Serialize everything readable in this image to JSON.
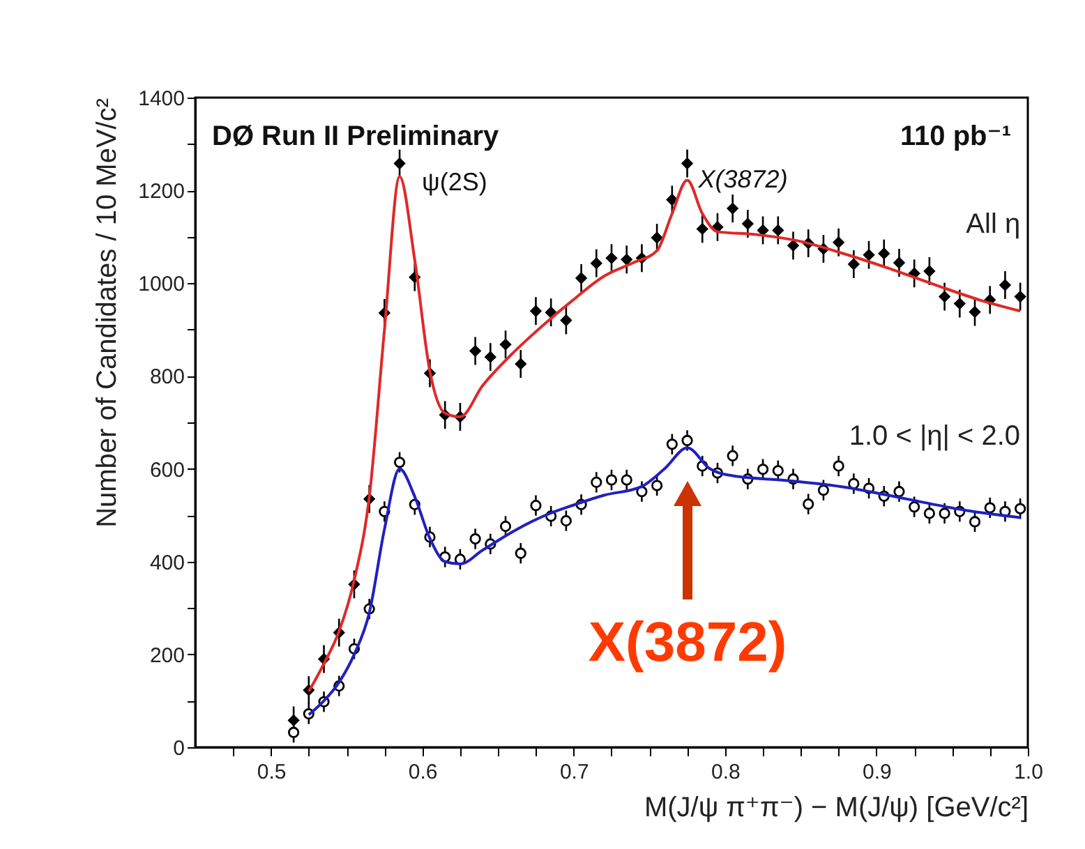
{
  "chart_data": {
    "type": "scatter",
    "xlabel": "M(J/ψ π⁺π⁻) − M(J/ψ) [GeV/c²]",
    "ylabel": "Number of Candidates / 10 MeV/c²",
    "annotations": [
      "DØ Run II Preliminary",
      "110 pb⁻¹",
      {
        "text": "ψ(2S)",
        "x": 0.585,
        "y": 1258
      },
      {
        "text": "X(3872)",
        "x": 0.775,
        "y": 1258
      },
      "X(3872)"
    ],
    "xlim": [
      0.45,
      1.0
    ],
    "xticks": [
      {
        "value": 0.475,
        "label": null
      },
      0.5,
      {
        "value": 0.525,
        "label": null
      },
      {
        "value": 0.55,
        "label": null
      },
      {
        "value": 0.575,
        "label": null
      },
      0.6,
      {
        "value": 0.625,
        "label": null
      },
      {
        "value": 0.65,
        "label": null
      },
      {
        "value": 0.675,
        "label": null
      },
      0.7,
      {
        "value": 0.725,
        "label": null
      },
      {
        "value": 0.75,
        "label": null
      },
      {
        "value": 0.775,
        "label": null
      },
      0.8,
      {
        "value": 0.825,
        "label": null
      },
      {
        "value": 0.85,
        "label": null
      },
      {
        "value": 0.875,
        "label": null
      },
      0.9,
      {
        "value": 0.925,
        "label": null
      },
      {
        "value": 0.95,
        "label": null
      },
      {
        "value": 0.975,
        "label": null
      },
      {
        "value": 1.0,
        "label": "1.0"
      }
    ],
    "ylim": [
      0,
      1400
    ],
    "yticks": [
      0,
      {
        "value": 100,
        "label": null
      },
      200,
      {
        "value": 300,
        "label": null
      },
      400,
      {
        "value": 500,
        "label": null
      },
      600,
      {
        "value": 700,
        "label": null
      },
      800,
      {
        "value": 900,
        "label": null
      },
      1000,
      {
        "value": 1100,
        "label": null
      },
      1200,
      {
        "value": 1300,
        "label": null
      },
      1400
    ],
    "grid": false,
    "series": [
      {
        "name": "All η",
        "color": "#000000",
        "marker": "diamond",
        "x": [
          0.515,
          0.525,
          0.535,
          0.545,
          0.555,
          0.565,
          0.575,
          0.585,
          0.595,
          0.605,
          0.615,
          0.625,
          0.635,
          0.645,
          0.655,
          0.665,
          0.675,
          0.685,
          0.695,
          0.705,
          0.715,
          0.725,
          0.735,
          0.745,
          0.755,
          0.765,
          0.775,
          0.785,
          0.795,
          0.805,
          0.815,
          0.825,
          0.835,
          0.845,
          0.855,
          0.865,
          0.875,
          0.885,
          0.895,
          0.905,
          0.915,
          0.925,
          0.935,
          0.945,
          0.955,
          0.965,
          0.975,
          0.985,
          0.995
        ],
        "values": [
          58,
          123,
          190,
          247,
          351,
          535,
          936,
          1258,
          1013,
          806,
          716,
          712,
          854,
          841,
          868,
          826,
          940,
          937,
          920,
          1011,
          1043,
          1054,
          1051,
          1054,
          1098,
          1180,
          1258,
          1117,
          1121,
          1161,
          1128,
          1114,
          1114,
          1081,
          1086,
          1074,
          1088,
          1041,
          1061,
          1064,
          1044,
          1021,
          1026,
          971,
          956,
          938,
          964,
          996,
          971
        ],
        "errors": [
          30,
          30,
          30,
          30,
          30,
          30,
          30,
          30,
          30,
          30,
          30,
          30,
          30,
          30,
          30,
          30,
          30,
          30,
          30,
          30,
          30,
          30,
          30,
          30,
          30,
          30,
          30,
          30,
          30,
          30,
          30,
          30,
          30,
          30,
          30,
          30,
          30,
          30,
          30,
          30,
          30,
          30,
          30,
          30,
          30,
          30,
          30,
          30,
          30
        ]
      },
      {
        "type": "line",
        "color": "#e02828",
        "x": [
          0.525,
          0.535,
          0.545,
          0.555,
          0.565,
          0.575,
          0.585,
          0.595,
          0.605,
          0.615,
          0.625,
          0.64,
          0.66,
          0.68,
          0.7,
          0.72,
          0.74,
          0.755,
          0.765,
          0.775,
          0.785,
          0.795,
          0.82,
          0.85,
          0.88,
          0.91,
          0.94,
          0.97,
          0.995
        ],
        "values": [
          120,
          180,
          250,
          360,
          540,
          900,
          1230,
          1050,
          810,
          720,
          712,
          780,
          850,
          910,
          965,
          1015,
          1045,
          1070,
          1150,
          1222,
          1150,
          1111,
          1105,
          1090,
          1062,
          1030,
          995,
          962,
          940
        ]
      },
      {
        "name": "1.0 < |η| < 2.0",
        "color": "#000000",
        "marker": "circle",
        "x": [
          0.515,
          0.525,
          0.535,
          0.545,
          0.555,
          0.565,
          0.575,
          0.585,
          0.595,
          0.605,
          0.615,
          0.625,
          0.635,
          0.645,
          0.655,
          0.665,
          0.675,
          0.685,
          0.695,
          0.705,
          0.715,
          0.725,
          0.735,
          0.745,
          0.755,
          0.765,
          0.775,
          0.785,
          0.795,
          0.805,
          0.815,
          0.825,
          0.835,
          0.845,
          0.855,
          0.865,
          0.875,
          0.885,
          0.895,
          0.905,
          0.915,
          0.925,
          0.935,
          0.945,
          0.955,
          0.965,
          0.975,
          0.985,
          0.995
        ],
        "values": [
          32,
          72,
          98,
          132,
          212,
          298,
          508,
          614,
          523,
          453,
          410,
          405,
          449,
          438,
          476,
          418,
          521,
          498,
          488,
          523,
          571,
          576,
          576,
          551,
          564,
          653,
          661,
          606,
          591,
          628,
          578,
          599,
          596,
          578,
          524,
          554,
          606,
          568,
          558,
          541,
          551,
          518,
          504,
          504,
          508,
          486,
          516,
          508,
          514
        ],
        "errors": [
          22,
          22,
          22,
          22,
          22,
          22,
          22,
          22,
          22,
          22,
          22,
          22,
          22,
          22,
          22,
          22,
          22,
          22,
          22,
          22,
          22,
          22,
          22,
          22,
          22,
          22,
          22,
          22,
          22,
          22,
          22,
          22,
          22,
          22,
          22,
          22,
          22,
          22,
          22,
          22,
          22,
          22,
          22,
          22,
          22,
          22,
          22,
          22,
          22
        ]
      },
      {
        "type": "line",
        "color": "#2020c0",
        "x": [
          0.525,
          0.535,
          0.545,
          0.555,
          0.565,
          0.575,
          0.585,
          0.595,
          0.605,
          0.615,
          0.625,
          0.64,
          0.66,
          0.68,
          0.7,
          0.72,
          0.745,
          0.76,
          0.775,
          0.79,
          0.805,
          0.84,
          0.88,
          0.92,
          0.96,
          0.995
        ],
        "values": [
          70,
          100,
          140,
          200,
          290,
          470,
          600,
          540,
          450,
          400,
          395,
          425,
          465,
          498,
          522,
          543,
          562,
          600,
          645,
          600,
          585,
          575,
          560,
          535,
          510,
          495
        ]
      }
    ]
  }
}
